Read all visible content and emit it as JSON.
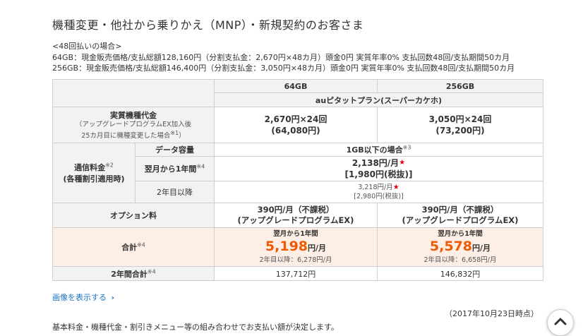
{
  "heading": "機種変更・他社から乗りかえ（MNP）・新規契約のお客さま",
  "notes": {
    "line1": "<48回払いの場合>",
    "line2": "64GB：現金販売価格/支払総額128,160円（分割支払金：2,670円×48カ月）頭金0円 実質年率0% 支払回数48回/支払期間50カ月",
    "line3": "256GB：現金販売価格/支払総額146,400円（分割支払金：3,050円×48カ月）頭金0円 実質年率0% 支払回数48回/支払期間50カ月"
  },
  "table": {
    "col_64": "64GB",
    "col_256": "256GB",
    "plan": "auピタットプラン(スーパーカケホ)",
    "device_label": "実質機種代金",
    "device_note1": "（アップグレードプログラムEX加入後",
    "device_note2": "25カ月目に機種変更した場合",
    "device_note2_sup": "※1",
    "device_note2_end": "）",
    "device_64_line1": "2,670円×24回",
    "device_64_line2": "(64,080円)",
    "device_256_line1": "3,050円×24回",
    "device_256_line2": "(73,200円)",
    "comm_label1": "通信料金",
    "comm_label1_sup": "※2",
    "comm_label2": "(各種割引適用時)",
    "data_cap_label": "データ容量",
    "data_cap_value": "1GB以下の場合",
    "data_cap_sup": "※3",
    "year1_label": "翌月から1年間",
    "year1_sup": "※4",
    "year1_value1": "2,138円/月",
    "year1_value2": "[1,980円(税抜)]",
    "year2_label": "2年目以降",
    "year2_value1": "3,218円/月",
    "year2_value2": "[2,980円(税抜)]",
    "option_label": "オプション料",
    "option_64_line1": "390円/月（不課税）",
    "option_64_line2": "(アップグレードプログラムEX)",
    "option_256_line1": "390円/月（不課税）",
    "option_256_line2": "(アップグレードプログラムEX)",
    "total_label": "合計",
    "total_sup": "※4",
    "total_first_label": "翌月から1年間",
    "total_64_big": "5,198",
    "total_256_big": "5,578",
    "total_unit": "円/月",
    "total_64_after": "2年目以降：6,278円/月",
    "total_256_after": "2年目以降：6,658円/月",
    "two_year_label": "2年間合計",
    "two_year_sup": "※4",
    "two_year_64": "137,712円",
    "two_year_256": "146,832円"
  },
  "link_text": "画像を表示する",
  "link_arrow": "›",
  "as_of": "（2017年10月23日時点）",
  "cut_text": "基本料金・機種代金・割引きメニュー等の組み合わせでお支払い額が決定します。",
  "colors": {
    "accent_price": "#f05a00",
    "total_bg": "#fdeee6",
    "header_bg": "#f2f2f2",
    "link": "#1a73c8",
    "star": "#e60012"
  },
  "icons": {
    "scroll_top": "chevron-up-icon",
    "star": "star-icon"
  }
}
